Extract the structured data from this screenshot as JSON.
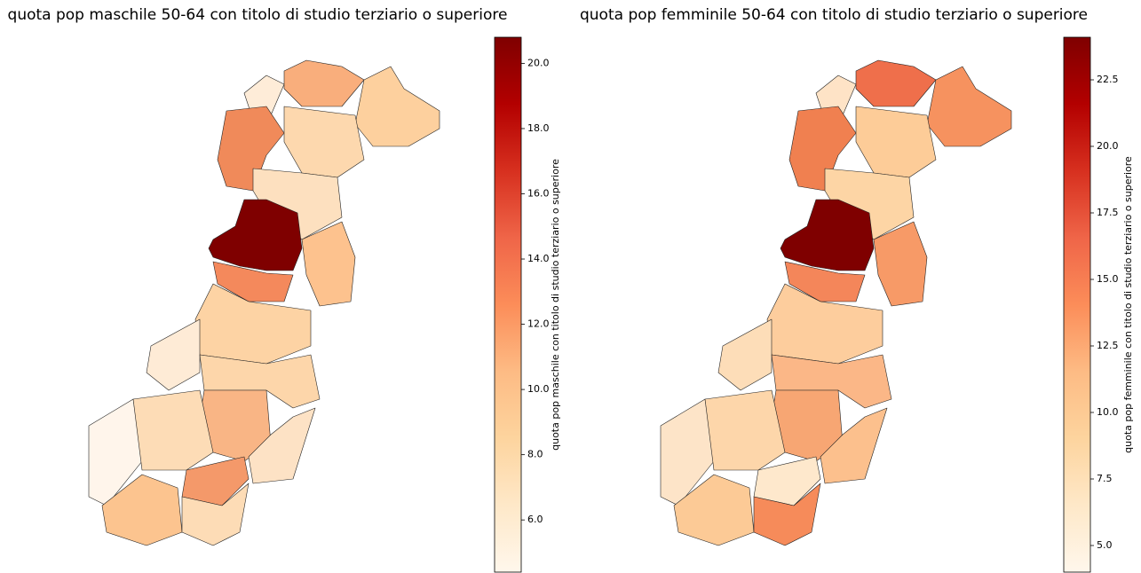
{
  "maps": [
    {
      "title": "quota pop maschile 50-64 con titolo di studio terziario o superiore",
      "colorbar": {
        "label": "quota pop maschile con titolo di studio terziario o superiore",
        "lim": [
          4.4,
          20.8
        ],
        "ticks": [
          {
            "value": 6,
            "label": "6.0"
          },
          {
            "value": 8,
            "label": "8.0"
          },
          {
            "value": 10,
            "label": "10.0"
          },
          {
            "value": 12,
            "label": "12.0"
          },
          {
            "value": 14,
            "label": "14.0"
          },
          {
            "value": 16,
            "label": "16.0"
          },
          {
            "value": 18,
            "label": "18.0"
          },
          {
            "value": 20,
            "label": "20.0"
          }
        ]
      }
    },
    {
      "title": "quota pop femminile 50-64 con titolo di studio terziario o superiore",
      "colorbar": {
        "label": "quota pop femminile con titolo di studio terziario o superiore",
        "lim": [
          4.0,
          24.1
        ],
        "ticks": [
          {
            "value": 5,
            "label": "5.0"
          },
          {
            "value": 7.5,
            "label": "7.5"
          },
          {
            "value": 10,
            "label": "10.0"
          },
          {
            "value": 12.5,
            "label": "12.5"
          },
          {
            "value": 15,
            "label": "15.0"
          },
          {
            "value": 17.5,
            "label": "17.5"
          },
          {
            "value": 20,
            "label": "20.0"
          },
          {
            "value": 22.5,
            "label": "22.5"
          }
        ]
      }
    }
  ]
}
